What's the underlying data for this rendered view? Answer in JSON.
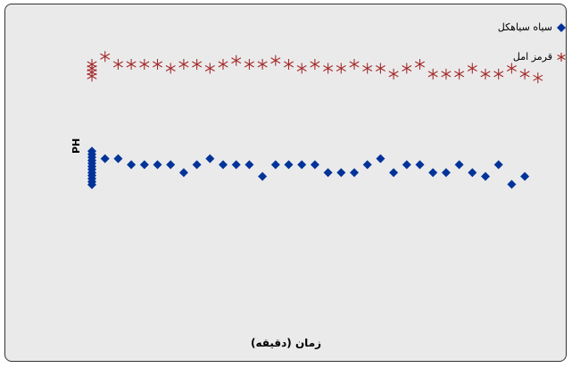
{
  "chart_data": {
    "type": "scatter",
    "xlabel": "زمان (دقیقه)",
    "ylabel": "PH",
    "legend_position": "top-right",
    "grid": false,
    "axes_visible": false,
    "x_range": [
      0,
      36
    ],
    "y_range": [
      0,
      20
    ],
    "series": [
      {
        "name": "سیاه سیاهکل",
        "marker": "diamond",
        "color": "#003399",
        "points": [
          [
            0,
            12.48
          ],
          [
            0,
            12.3
          ],
          [
            0,
            12.13
          ],
          [
            0,
            11.95
          ],
          [
            0,
            11.78
          ],
          [
            0,
            11.6
          ],
          [
            0,
            11.43
          ],
          [
            0,
            11.25
          ],
          [
            0,
            11.08
          ],
          [
            0,
            10.9
          ],
          [
            0,
            10.72
          ],
          [
            0,
            10.55
          ],
          [
            1,
            12.05
          ],
          [
            2,
            12.05
          ],
          [
            3,
            11.7
          ],
          [
            4,
            11.7
          ],
          [
            5,
            11.7
          ],
          [
            6,
            11.7
          ],
          [
            7,
            11.25
          ],
          [
            8,
            11.7
          ],
          [
            9,
            12.05
          ],
          [
            10,
            11.7
          ],
          [
            11,
            11.7
          ],
          [
            12,
            11.7
          ],
          [
            13,
            11.03
          ],
          [
            14,
            11.7
          ],
          [
            15,
            11.7
          ],
          [
            16,
            11.7
          ],
          [
            17,
            11.7
          ],
          [
            18,
            11.25
          ],
          [
            19,
            11.25
          ],
          [
            20,
            11.25
          ],
          [
            21,
            11.7
          ],
          [
            22,
            12.05
          ],
          [
            23,
            11.25
          ],
          [
            24,
            11.7
          ],
          [
            25,
            11.7
          ],
          [
            26,
            11.25
          ],
          [
            27,
            11.25
          ],
          [
            28,
            11.7
          ],
          [
            29,
            11.25
          ],
          [
            30,
            11.03
          ],
          [
            31,
            11.7
          ],
          [
            32,
            10.57
          ],
          [
            33,
            11.03
          ]
        ]
      },
      {
        "name": "قرمز امل",
        "marker": "star",
        "color": "#a42a2a",
        "points": [
          [
            0,
            17.48
          ],
          [
            0,
            17.25
          ],
          [
            0,
            17.03
          ],
          [
            0,
            16.8
          ],
          [
            1,
            17.93
          ],
          [
            2,
            17.48
          ],
          [
            3,
            17.48
          ],
          [
            4,
            17.48
          ],
          [
            5,
            17.48
          ],
          [
            6,
            17.25
          ],
          [
            7,
            17.48
          ],
          [
            8,
            17.48
          ],
          [
            9,
            17.25
          ],
          [
            10,
            17.48
          ],
          [
            11,
            17.7
          ],
          [
            12,
            17.48
          ],
          [
            13,
            17.48
          ],
          [
            14,
            17.7
          ],
          [
            15,
            17.48
          ],
          [
            16,
            17.25
          ],
          [
            17,
            17.48
          ],
          [
            18,
            17.25
          ],
          [
            19,
            17.25
          ],
          [
            20,
            17.48
          ],
          [
            21,
            17.25
          ],
          [
            22,
            17.25
          ],
          [
            23,
            16.92
          ],
          [
            24,
            17.25
          ],
          [
            25,
            17.48
          ],
          [
            26,
            16.92
          ],
          [
            27,
            16.92
          ],
          [
            28,
            16.92
          ],
          [
            29,
            17.25
          ],
          [
            30,
            16.92
          ],
          [
            31,
            16.92
          ],
          [
            32,
            17.25
          ],
          [
            33,
            16.92
          ],
          [
            34,
            16.7
          ]
        ]
      }
    ]
  },
  "legend": {
    "items": [
      {
        "label": "سیاه سیاهکل",
        "marker": "diamond",
        "color": "#003399"
      },
      {
        "label": "قرمز امل",
        "marker": "star",
        "color": "#a42a2a"
      }
    ]
  }
}
